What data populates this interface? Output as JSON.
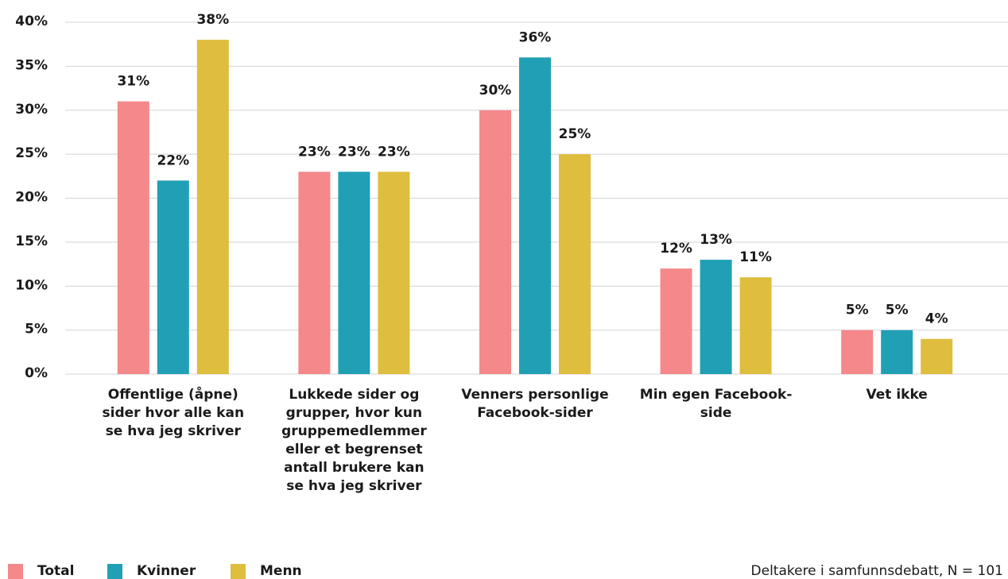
{
  "chart_data": {
    "type": "bar",
    "categories": [
      "Offentlige (åpne) sider hvor alle kan se hva jeg skriver",
      "Lukkede sider og grupper, hvor kun gruppemedlemmer eller et begrenset antall brukere kan se hva jeg skriver",
      "Venners personlige Facebook-sider",
      "Min egen Facebook-side",
      "Vet ikke"
    ],
    "series": [
      {
        "name": "Total",
        "color": "#f4888a",
        "values": [
          31,
          23,
          30,
          12,
          5
        ],
        "value_labels": [
          "31%",
          "23%",
          "30%",
          "12%",
          "5%"
        ]
      },
      {
        "name": "Kvinner",
        "color": "#21a0b5",
        "values": [
          22,
          23,
          36,
          13,
          5
        ],
        "value_labels": [
          "22%",
          "23%",
          "36%",
          "13%",
          "5%"
        ]
      },
      {
        "name": "Menn",
        "color": "#dfbd3e",
        "values": [
          38,
          23,
          25,
          11,
          4
        ],
        "value_labels": [
          "38%",
          "23%",
          "25%",
          "11%",
          "4%"
        ]
      }
    ],
    "ylim": [
      0,
      40
    ],
    "yticks": [
      {
        "value": 0,
        "label": "0%"
      },
      {
        "value": 5,
        "label": "5%"
      },
      {
        "value": 10,
        "label": "10%"
      },
      {
        "value": 15,
        "label": "15%"
      },
      {
        "value": 20,
        "label": "20%"
      },
      {
        "value": 25,
        "label": "25%"
      },
      {
        "value": 30,
        "label": "30%"
      },
      {
        "value": 35,
        "label": "35%"
      },
      {
        "value": 40,
        "label": "40%"
      }
    ],
    "grid": true,
    "legend": "bottom-left",
    "note": "Deltakere i samfunnsdebatt, N = 101"
  }
}
